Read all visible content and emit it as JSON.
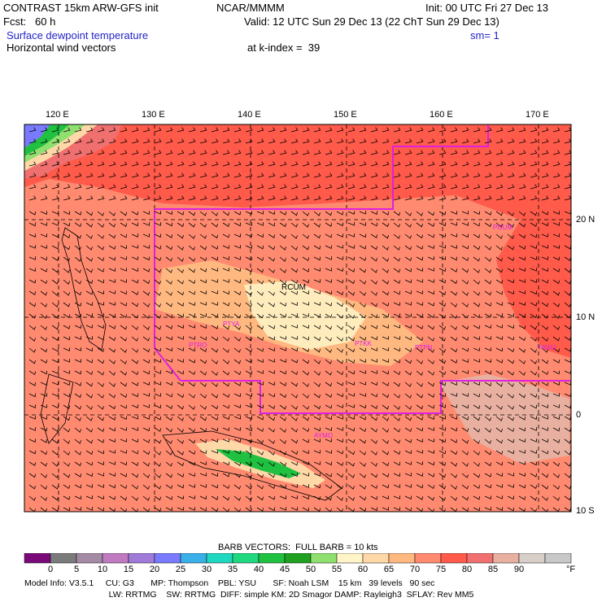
{
  "header": {
    "model_title": "CONTRAST 15km ARW-GFS init",
    "org": "NCAR/MMMM",
    "init": "Init: 00 UTC Fri 27 Dec 13",
    "fcst": "Fcst:   60 h",
    "valid": "Valid: 12 UTC Sun 29 Dec 13 (22 ChT Sun 29 Dec 13)",
    "field1": "Surface dewpoint temperature",
    "sm": "sm= 1",
    "field2": "Horizontal wind vectors",
    "kindex": "at k-index =  39"
  },
  "map": {
    "lon_labels": [
      "120 E",
      "130 E",
      "140 E",
      "150 E",
      "160 E",
      "170 E"
    ],
    "lat_labels": [
      "20 N",
      "10 N",
      "0",
      "10 S"
    ],
    "place_labels": [
      "RCUM",
      "PTYA",
      "PTRO",
      "PTKK",
      "PTPN",
      "PKMJ",
      "PGUM",
      "AYMO"
    ],
    "fir_color": "#e020e0"
  },
  "colorbar": {
    "title": "BARB VECTORS:  FULL BARB = 10 kts",
    "labels": [
      "0",
      "5",
      "10",
      "15",
      "20",
      "25",
      "30",
      "35",
      "40",
      "45",
      "50",
      "55",
      "60",
      "65",
      "70",
      "75",
      "80",
      "85",
      "90"
    ],
    "unit": "°F",
    "colors": [
      "#7a0a7a",
      "#7b7b7b",
      "#a58aa5",
      "#c07ac0",
      "#a07ad8",
      "#7a7aff",
      "#3ab0e8",
      "#20d8c0",
      "#20d880",
      "#20c040",
      "#20a020",
      "#90e070",
      "#fff5c8",
      "#ffd8a8",
      "#ffb880",
      "#ff8a70",
      "#ff5a4a",
      "#f07070",
      "#e8b0a0",
      "#d8d0c8",
      "#c8c8c8"
    ]
  },
  "footer": {
    "line1": "Model Info: V3.5.1     CU: G3       MP: Thompson    PBL: YSU       SF: Noah LSM    15 km   39 levels   90 sec",
    "line2": "    LW: RRTMG    SW: RRTMG  DIFF: simple KM: 2D Smagor DAMP: Rayleigh3  SFLAY: Rev MM5"
  }
}
